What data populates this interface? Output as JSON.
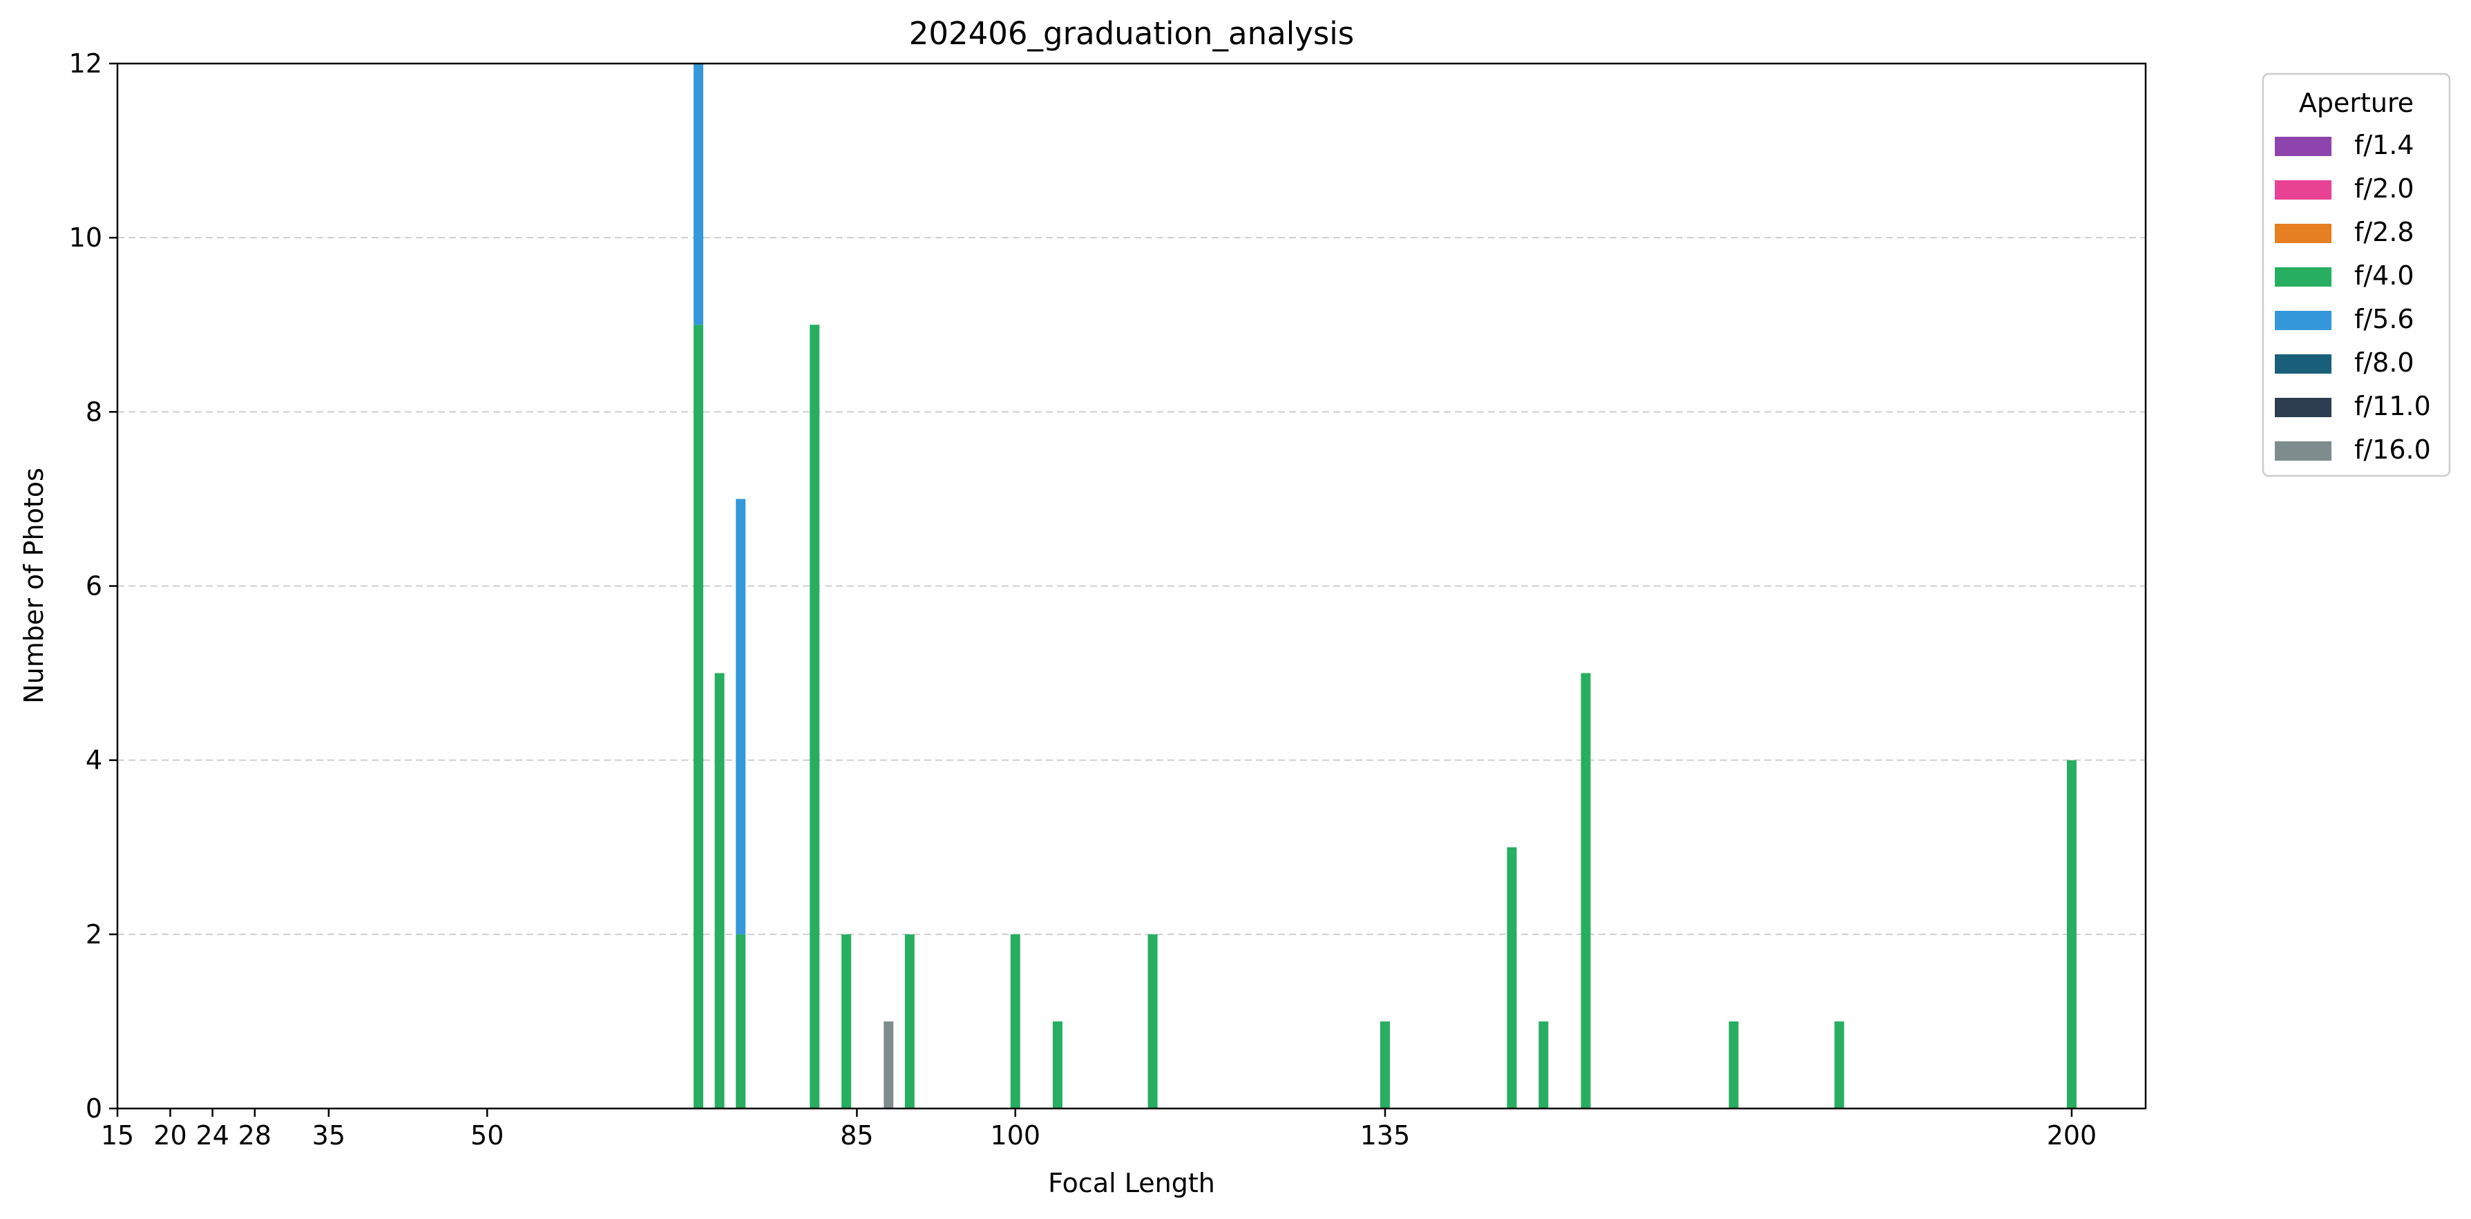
{
  "chart_data": {
    "type": "bar",
    "stacked": true,
    "title": "202406_graduation_analysis",
    "xlabel": "Focal Length",
    "ylabel": "Number of Photos",
    "xlim": [
      15,
      207
    ],
    "ylim": [
      0,
      12
    ],
    "xticks": [
      15,
      20,
      24,
      28,
      35,
      50,
      85,
      100,
      135,
      200
    ],
    "yticks": [
      0,
      2,
      4,
      6,
      8,
      10,
      12
    ],
    "grid": "y-dashed",
    "legend": {
      "title": "Aperture",
      "placement": "outside-top-right"
    },
    "series": [
      {
        "name": "f/1.4",
        "color": "#8e44ad",
        "points": []
      },
      {
        "name": "f/2.0",
        "color": "#e84393",
        "points": []
      },
      {
        "name": "f/2.8",
        "color": "#e67e22",
        "points": []
      },
      {
        "name": "f/4.0",
        "color": "#27ae60",
        "points": [
          {
            "x": 70,
            "y": 9
          },
          {
            "x": 72,
            "y": 5
          },
          {
            "x": 74,
            "y": 2
          },
          {
            "x": 81,
            "y": 9
          },
          {
            "x": 84,
            "y": 2
          },
          {
            "x": 90,
            "y": 2
          },
          {
            "x": 100,
            "y": 2
          },
          {
            "x": 104,
            "y": 1
          },
          {
            "x": 113,
            "y": 2
          },
          {
            "x": 135,
            "y": 1
          },
          {
            "x": 147,
            "y": 3
          },
          {
            "x": 150,
            "y": 1
          },
          {
            "x": 154,
            "y": 5
          },
          {
            "x": 168,
            "y": 1
          },
          {
            "x": 178,
            "y": 1
          },
          {
            "x": 200,
            "y": 4
          }
        ]
      },
      {
        "name": "f/5.6",
        "color": "#3498db",
        "points": [
          {
            "x": 70,
            "y": 3
          },
          {
            "x": 74,
            "y": 5
          }
        ]
      },
      {
        "name": "f/8.0",
        "color": "#1a5f7a",
        "points": []
      },
      {
        "name": "f/11.0",
        "color": "#2c3e50",
        "points": []
      },
      {
        "name": "f/16.0",
        "color": "#7f8c8d",
        "points": [
          {
            "x": 88,
            "y": 1
          }
        ]
      }
    ]
  }
}
